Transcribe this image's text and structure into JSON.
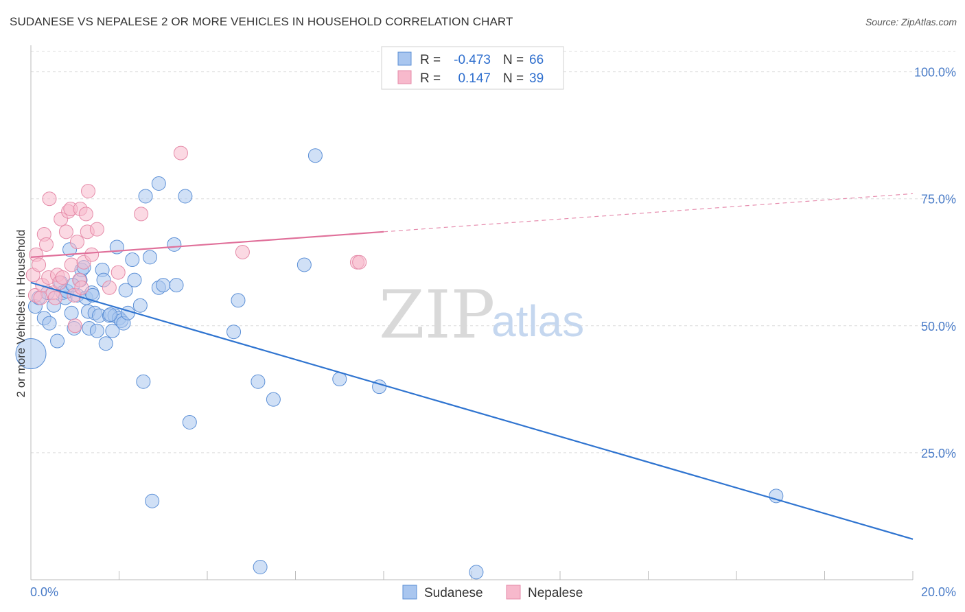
{
  "title": "SUDANESE VS NEPALESE 2 OR MORE VEHICLES IN HOUSEHOLD CORRELATION CHART",
  "source": "Source: ZipAtlas.com",
  "watermark": {
    "zip": "ZIP",
    "atlas": "atlas"
  },
  "colors": {
    "sudanese_fill": "#a9c6ef",
    "sudanese_stroke": "#5b8fd6",
    "sudanese_line": "#2f74d0",
    "nepalese_fill": "#f7b9cc",
    "nepalese_stroke": "#e58aa8",
    "nepalese_line": "#e0709a",
    "tick": "#4a7cc8",
    "grid": "#dcdcdc"
  },
  "legend_top": {
    "rows": [
      {
        "r_label": "R =",
        "r_value": "-0.473",
        "n_label": "N =",
        "n_value": "66"
      },
      {
        "r_label": "R =",
        "r_value": "0.147",
        "n_label": "N =",
        "n_value": "39"
      }
    ]
  },
  "legend_bottom": {
    "items": [
      "Sudanese",
      "Nepalese"
    ]
  },
  "chart_data": {
    "type": "scatter",
    "title": "SUDANESE VS NEPALESE 2 OR MORE VEHICLES IN HOUSEHOLD CORRELATION CHART",
    "xlabel": "",
    "ylabel": "2 or more Vehicles in Household",
    "xlim": [
      0,
      20
    ],
    "ylim": [
      0,
      104
    ],
    "x_tick_labels": [
      "0.0%",
      "20.0%"
    ],
    "y_ticks": [
      25,
      50,
      75,
      100
    ],
    "y_tick_labels": [
      "25.0%",
      "50.0%",
      "75.0%",
      "100.0%"
    ],
    "grid": true,
    "legend_position": "top-center",
    "series": [
      {
        "name": "Sudanese",
        "r": -0.473,
        "n": 66,
        "trend": {
          "x": [
            0,
            20
          ],
          "y": [
            58.5,
            8.0
          ],
          "dashed_from": null
        },
        "points": [
          [
            0.0,
            44.5,
            22
          ],
          [
            0.1,
            53.8,
            10
          ],
          [
            0.18,
            55.5,
            10
          ],
          [
            0.3,
            51.5,
            10
          ],
          [
            0.38,
            56.5,
            10
          ],
          [
            0.42,
            50.5,
            10
          ],
          [
            0.52,
            54.0,
            10
          ],
          [
            0.6,
            47.0,
            10
          ],
          [
            0.68,
            58.5,
            10
          ],
          [
            0.72,
            56.5,
            10
          ],
          [
            0.78,
            55.5,
            10
          ],
          [
            0.82,
            56.8,
            10
          ],
          [
            0.88,
            65.0,
            10
          ],
          [
            0.92,
            52.5,
            10
          ],
          [
            0.98,
            49.5,
            10
          ],
          [
            1.05,
            56.0,
            10
          ],
          [
            1.12,
            59.0,
            10
          ],
          [
            1.15,
            61.0,
            10
          ],
          [
            1.2,
            61.5,
            10
          ],
          [
            1.25,
            55.5,
            10
          ],
          [
            1.3,
            52.8,
            10
          ],
          [
            1.32,
            49.5,
            10
          ],
          [
            1.38,
            56.5,
            10
          ],
          [
            1.4,
            56.0,
            10
          ],
          [
            1.45,
            52.5,
            10
          ],
          [
            1.5,
            49.0,
            10
          ],
          [
            1.55,
            52.0,
            10
          ],
          [
            1.62,
            61.0,
            10
          ],
          [
            1.65,
            59.0,
            10
          ],
          [
            1.7,
            46.5,
            10
          ],
          [
            1.78,
            52.0,
            10
          ],
          [
            1.85,
            49.0,
            10
          ],
          [
            1.9,
            52.0,
            10
          ],
          [
            1.95,
            65.5,
            10
          ],
          [
            2.0,
            51.5,
            10
          ],
          [
            2.05,
            51.0,
            10
          ],
          [
            2.1,
            50.5,
            10
          ],
          [
            2.15,
            57.0,
            10
          ],
          [
            2.2,
            52.5,
            10
          ],
          [
            2.3,
            63.0,
            10
          ],
          [
            2.35,
            59.0,
            10
          ],
          [
            2.48,
            54.0,
            10
          ],
          [
            2.6,
            75.5,
            10
          ],
          [
            2.7,
            63.5,
            10
          ],
          [
            2.9,
            57.5,
            10
          ],
          [
            3.0,
            58.0,
            10
          ],
          [
            3.25,
            66.0,
            10
          ],
          [
            3.3,
            58.0,
            10
          ],
          [
            3.5,
            75.5,
            10
          ],
          [
            2.55,
            39.0,
            10
          ],
          [
            2.75,
            15.5,
            10
          ],
          [
            3.6,
            31.0,
            10
          ],
          [
            4.6,
            48.8,
            10
          ],
          [
            4.7,
            55.0,
            10
          ],
          [
            5.15,
            39.0,
            10
          ],
          [
            5.2,
            2.5,
            10
          ],
          [
            5.5,
            35.5,
            10
          ],
          [
            6.2,
            62.0,
            10
          ],
          [
            6.45,
            83.5,
            10
          ],
          [
            7.0,
            39.5,
            10
          ],
          [
            7.9,
            38.0,
            10
          ],
          [
            10.1,
            1.5,
            10
          ],
          [
            16.9,
            16.5,
            10
          ],
          [
            2.9,
            78.0,
            10
          ],
          [
            0.95,
            58.0,
            10
          ],
          [
            1.8,
            52.2,
            10
          ]
        ]
      },
      {
        "name": "Nepalese",
        "r": 0.147,
        "n": 39,
        "trend": {
          "x": [
            0,
            20
          ],
          "y": [
            63.5,
            76.0
          ],
          "dashed_from": 8.0
        },
        "points": [
          [
            0.05,
            60.0,
            10
          ],
          [
            0.1,
            56.0,
            10
          ],
          [
            0.12,
            64.0,
            10
          ],
          [
            0.18,
            62.0,
            10
          ],
          [
            0.22,
            55.5,
            10
          ],
          [
            0.26,
            58.0,
            10
          ],
          [
            0.3,
            68.0,
            10
          ],
          [
            0.35,
            66.0,
            10
          ],
          [
            0.4,
            59.5,
            10
          ],
          [
            0.42,
            75.0,
            10
          ],
          [
            0.5,
            56.5,
            10
          ],
          [
            0.55,
            55.5,
            10
          ],
          [
            0.6,
            60.0,
            10
          ],
          [
            0.65,
            58.5,
            10
          ],
          [
            0.68,
            71.0,
            10
          ],
          [
            0.72,
            59.5,
            10
          ],
          [
            0.8,
            68.5,
            10
          ],
          [
            0.85,
            72.5,
            10
          ],
          [
            0.9,
            73.0,
            10
          ],
          [
            0.92,
            62.0,
            10
          ],
          [
            0.98,
            56.0,
            10
          ],
          [
            1.0,
            50.0,
            10
          ],
          [
            1.05,
            66.5,
            10
          ],
          [
            1.1,
            59.0,
            10
          ],
          [
            1.12,
            73.0,
            10
          ],
          [
            1.15,
            57.5,
            10
          ],
          [
            1.2,
            62.5,
            10
          ],
          [
            1.25,
            72.0,
            10
          ],
          [
            1.28,
            68.5,
            10
          ],
          [
            1.3,
            76.5,
            10
          ],
          [
            1.38,
            64.0,
            10
          ],
          [
            1.5,
            69.0,
            10
          ],
          [
            1.78,
            57.5,
            10
          ],
          [
            1.98,
            60.5,
            10
          ],
          [
            2.5,
            72.0,
            10
          ],
          [
            3.4,
            84.0,
            10
          ],
          [
            4.8,
            64.5,
            10
          ],
          [
            7.4,
            62.5,
            10
          ],
          [
            7.45,
            62.5,
            10
          ]
        ]
      }
    ]
  }
}
